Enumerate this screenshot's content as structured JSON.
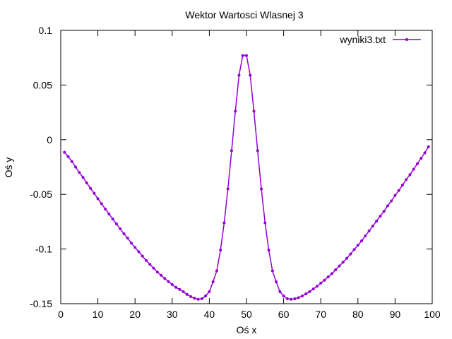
{
  "chart_data": {
    "type": "line",
    "title": "Wektor Wartosci Wlasnej 3",
    "xlabel": "Oś x",
    "ylabel": "Oś y",
    "xlim": [
      0,
      100
    ],
    "ylim": [
      -0.15,
      0.1
    ],
    "xticks": [
      0,
      10,
      20,
      30,
      40,
      50,
      60,
      70,
      80,
      90,
      100
    ],
    "yticks": [
      -0.15,
      -0.1,
      -0.05,
      0,
      0.05,
      0.1
    ],
    "ytick_labels": [
      "-0.15",
      "-0.1",
      "-0.05",
      "0",
      "0.05",
      "0.1"
    ],
    "xtick_labels": [
      "0",
      "10",
      "20",
      "30",
      "40",
      "50",
      "60",
      "70",
      "80",
      "90",
      "100"
    ],
    "grid": false,
    "legend_position": "top-right",
    "series": [
      {
        "name": "wyniki3.txt",
        "color": "#9400d3",
        "x": [
          1,
          2,
          3,
          4,
          5,
          6,
          7,
          8,
          9,
          10,
          11,
          12,
          13,
          14,
          15,
          16,
          17,
          18,
          19,
          20,
          21,
          22,
          23,
          24,
          25,
          26,
          27,
          28,
          29,
          30,
          31,
          32,
          33,
          34,
          35,
          36,
          37,
          38,
          39,
          40,
          41,
          42,
          43,
          44,
          45,
          46,
          47,
          48,
          49,
          50,
          51,
          52,
          53,
          54,
          55,
          56,
          57,
          58,
          59,
          60,
          61,
          62,
          63,
          64,
          65,
          66,
          67,
          68,
          69,
          70,
          71,
          72,
          73,
          74,
          75,
          76,
          77,
          78,
          79,
          80,
          81,
          82,
          83,
          84,
          85,
          86,
          87,
          88,
          89,
          90,
          91,
          92,
          93,
          94,
          95,
          96,
          97,
          98,
          99
        ],
        "y": [
          -0.0115,
          -0.0155,
          -0.02,
          -0.025,
          -0.03,
          -0.0345,
          -0.0395,
          -0.0445,
          -0.049,
          -0.054,
          -0.0585,
          -0.0635,
          -0.068,
          -0.0725,
          -0.077,
          -0.0815,
          -0.086,
          -0.09,
          -0.0945,
          -0.0985,
          -0.1025,
          -0.1065,
          -0.1105,
          -0.114,
          -0.1175,
          -0.121,
          -0.124,
          -0.127,
          -0.1298,
          -0.1325,
          -0.135,
          -0.137,
          -0.139,
          -0.1415,
          -0.1435,
          -0.145,
          -0.146,
          -0.1455,
          -0.143,
          -0.139,
          -0.13,
          -0.12,
          -0.101,
          -0.076,
          -0.045,
          -0.01,
          0.026,
          0.059,
          0.077,
          0.077,
          0.059,
          0.026,
          -0.01,
          -0.045,
          -0.076,
          -0.101,
          -0.12,
          -0.13,
          -0.139,
          -0.143,
          -0.1455,
          -0.146,
          -0.1455,
          -0.1445,
          -0.143,
          -0.141,
          -0.139,
          -0.1365,
          -0.134,
          -0.1312,
          -0.1285,
          -0.1255,
          -0.1225,
          -0.119,
          -0.1155,
          -0.112,
          -0.1085,
          -0.1045,
          -0.1005,
          -0.0965,
          -0.0925,
          -0.088,
          -0.0835,
          -0.079,
          -0.0745,
          -0.07,
          -0.0655,
          -0.0605,
          -0.056,
          -0.051,
          -0.0465,
          -0.0415,
          -0.0365,
          -0.032,
          -0.027,
          -0.022,
          -0.017,
          -0.012,
          -0.0065
        ]
      }
    ]
  }
}
